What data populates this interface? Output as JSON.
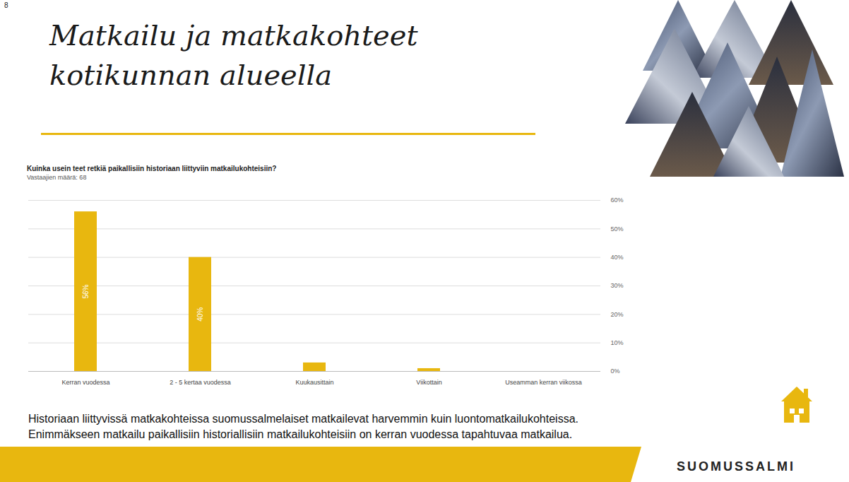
{
  "page": {
    "number": "8",
    "heading": [
      "Matkailu ja matkakohteet",
      "kotikunnan alueella"
    ],
    "caption": [
      "Historiaan liittyvissä matkakohteissa suomussalmelaiset matkailevat harvemmin kuin luontomatkailukohteissa.",
      "Enimmäkseen matkailu paikallisiin historiallisiin matkailukohteisiin on kerran vuodessa tapahtuvaa matkailua."
    ],
    "logo": "SUOMUSSALMI"
  },
  "chart_data": {
    "type": "bar",
    "title": "Kuinka usein teet retkiä paikallisiin historiaan liittyviin matkailukohteisiin?",
    "subtitle": "Vastaajien määrä: 68",
    "categories": [
      "Kerran vuodessa",
      "2 - 5 kertaa vuodessa",
      "Kuukausittain",
      "Viikottain",
      "Useamman kerran viikossa"
    ],
    "values": [
      56,
      40,
      3,
      1,
      0
    ],
    "value_labels": [
      "56%",
      "40%",
      null,
      null,
      null
    ],
    "data_labels": true,
    "color": "#e8b70f",
    "ylim": [
      0,
      60
    ],
    "yticks": [
      {
        "value": 0,
        "label": "0%"
      },
      {
        "value": 10,
        "label": "10%"
      },
      {
        "value": 20,
        "label": "20%"
      },
      {
        "value": 30,
        "label": "30%"
      },
      {
        "value": 40,
        "label": "40%"
      },
      {
        "value": 50,
        "label": "50%"
      },
      {
        "value": 60,
        "label": "60%"
      }
    ],
    "grid": true
  }
}
